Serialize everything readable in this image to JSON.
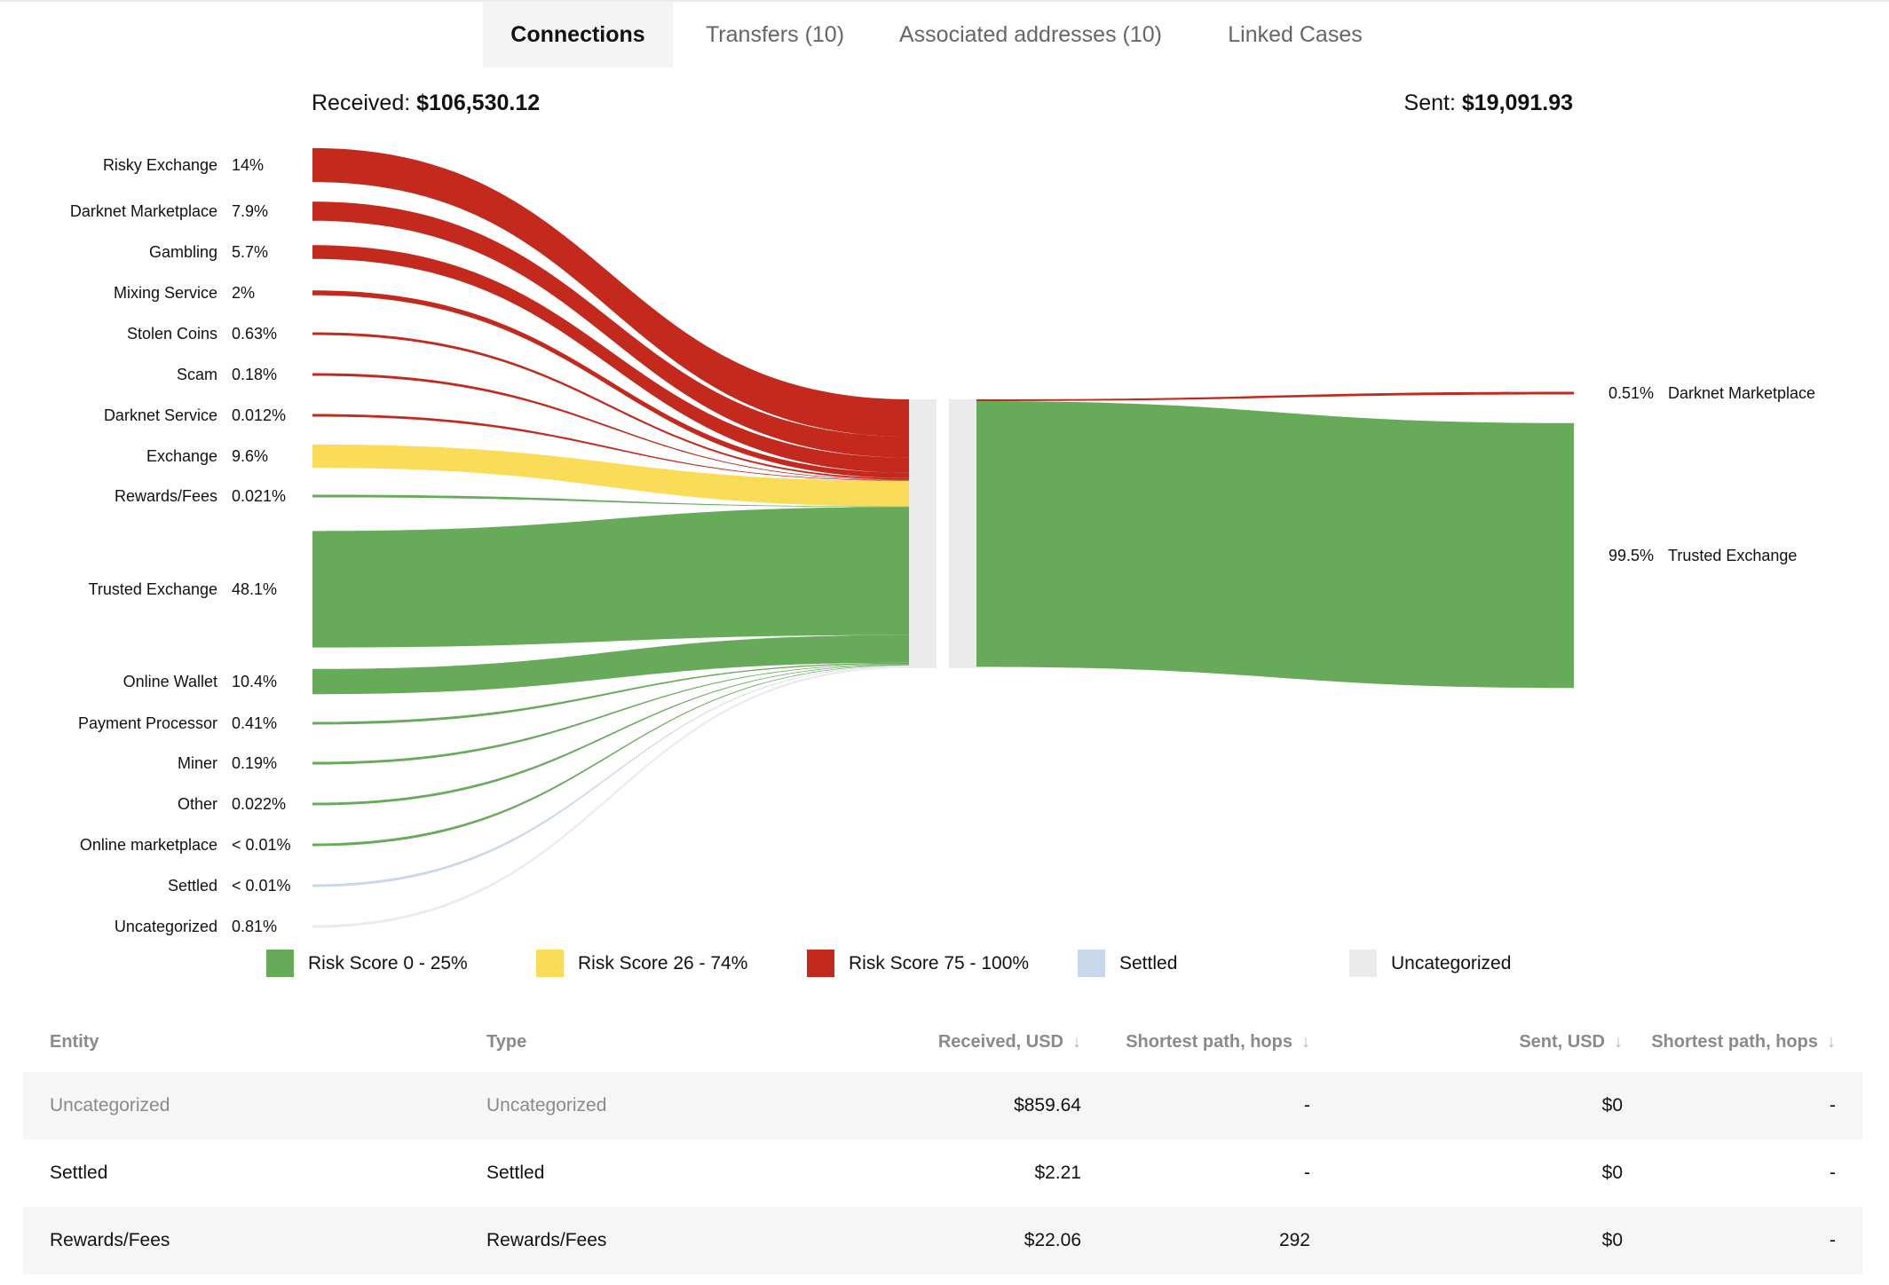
{
  "tabs": [
    {
      "label": "Connections",
      "active": true
    },
    {
      "label": "Transfers (10)",
      "active": false
    },
    {
      "label": "Associated addresses (10)",
      "active": false
    },
    {
      "label": "Linked Cases",
      "active": false
    }
  ],
  "summary": {
    "received_label": "Received:",
    "received_value": "$106,530.12",
    "sent_label": "Sent:",
    "sent_value": "$19,091.93"
  },
  "colors": {
    "green": "#67ab5a",
    "yellow": "#fbdc58",
    "red": "#c4291d",
    "blue": "#c9d7ea",
    "gray": "#ebebeb"
  },
  "chart_data": {
    "type": "sankey",
    "received": [
      {
        "name": "Risky Exchange",
        "pct_label": "14%",
        "share": 14,
        "risk": "red"
      },
      {
        "name": "Darknet Marketplace",
        "pct_label": "7.9%",
        "share": 7.9,
        "risk": "red"
      },
      {
        "name": "Gambling",
        "pct_label": "5.7%",
        "share": 5.7,
        "risk": "red"
      },
      {
        "name": "Mixing Service",
        "pct_label": "2%",
        "share": 2,
        "risk": "red"
      },
      {
        "name": "Stolen Coins",
        "pct_label": "0.63%",
        "share": 0.63,
        "risk": "red"
      },
      {
        "name": "Scam",
        "pct_label": "0.18%",
        "share": 0.18,
        "risk": "red"
      },
      {
        "name": "Darknet Service",
        "pct_label": "0.012%",
        "share": 0.012,
        "risk": "red"
      },
      {
        "name": "Exchange",
        "pct_label": "9.6%",
        "share": 9.6,
        "risk": "yellow"
      },
      {
        "name": "Rewards/Fees",
        "pct_label": "0.021%",
        "share": 0.021,
        "risk": "green"
      },
      {
        "name": "Trusted Exchange",
        "pct_label": "48.1%",
        "share": 48.1,
        "risk": "green"
      },
      {
        "name": "Online Wallet",
        "pct_label": "10.4%",
        "share": 10.4,
        "risk": "green"
      },
      {
        "name": "Payment Processor",
        "pct_label": "0.41%",
        "share": 0.41,
        "risk": "green"
      },
      {
        "name": "Miner",
        "pct_label": "0.19%",
        "share": 0.19,
        "risk": "green"
      },
      {
        "name": "Other",
        "pct_label": "0.022%",
        "share": 0.022,
        "risk": "green"
      },
      {
        "name": "Online marketplace",
        "pct_label": "< 0.01%",
        "share": 0.005,
        "risk": "green"
      },
      {
        "name": "Settled",
        "pct_label": "< 0.01%",
        "share": 0.002,
        "risk": "blue"
      },
      {
        "name": "Uncategorized",
        "pct_label": "0.81%",
        "share": 0.81,
        "risk": "gray"
      }
    ],
    "sent": [
      {
        "name": "Darknet Marketplace",
        "pct_label": "0.51%",
        "share": 0.51,
        "risk": "red"
      },
      {
        "name": "Trusted Exchange",
        "pct_label": "99.5%",
        "share": 99.5,
        "risk": "green"
      }
    ]
  },
  "legend": [
    {
      "label": "Risk Score 0 - 25%",
      "color": "#67ab5a"
    },
    {
      "label": "Risk Score 26 - 74%",
      "color": "#fbdc58"
    },
    {
      "label": "Risk Score 75 - 100%",
      "color": "#c4291d"
    },
    {
      "label": "Settled",
      "color": "#c9d7ea"
    },
    {
      "label": "Uncategorized",
      "color": "#ebebeb"
    }
  ],
  "table": {
    "headers": {
      "entity": "Entity",
      "type": "Type",
      "received": "Received, USD",
      "hops_received": "Shortest path, hops",
      "sent": "Sent, USD",
      "hops_sent": "Shortest path, hops"
    },
    "sort_arrow": "↓",
    "rows": [
      {
        "entity": "Uncategorized",
        "type": "Uncategorized",
        "received": "$859.64",
        "hops_received": "-",
        "sent": "$0",
        "hops_sent": "-"
      },
      {
        "entity": "Settled",
        "type": "Settled",
        "received": "$2.21",
        "hops_received": "-",
        "sent": "$0",
        "hops_sent": "-"
      },
      {
        "entity": "Rewards/Fees",
        "type": "Rewards/Fees",
        "received": "$22.06",
        "hops_received": "292",
        "sent": "$0",
        "hops_sent": "-"
      }
    ]
  }
}
